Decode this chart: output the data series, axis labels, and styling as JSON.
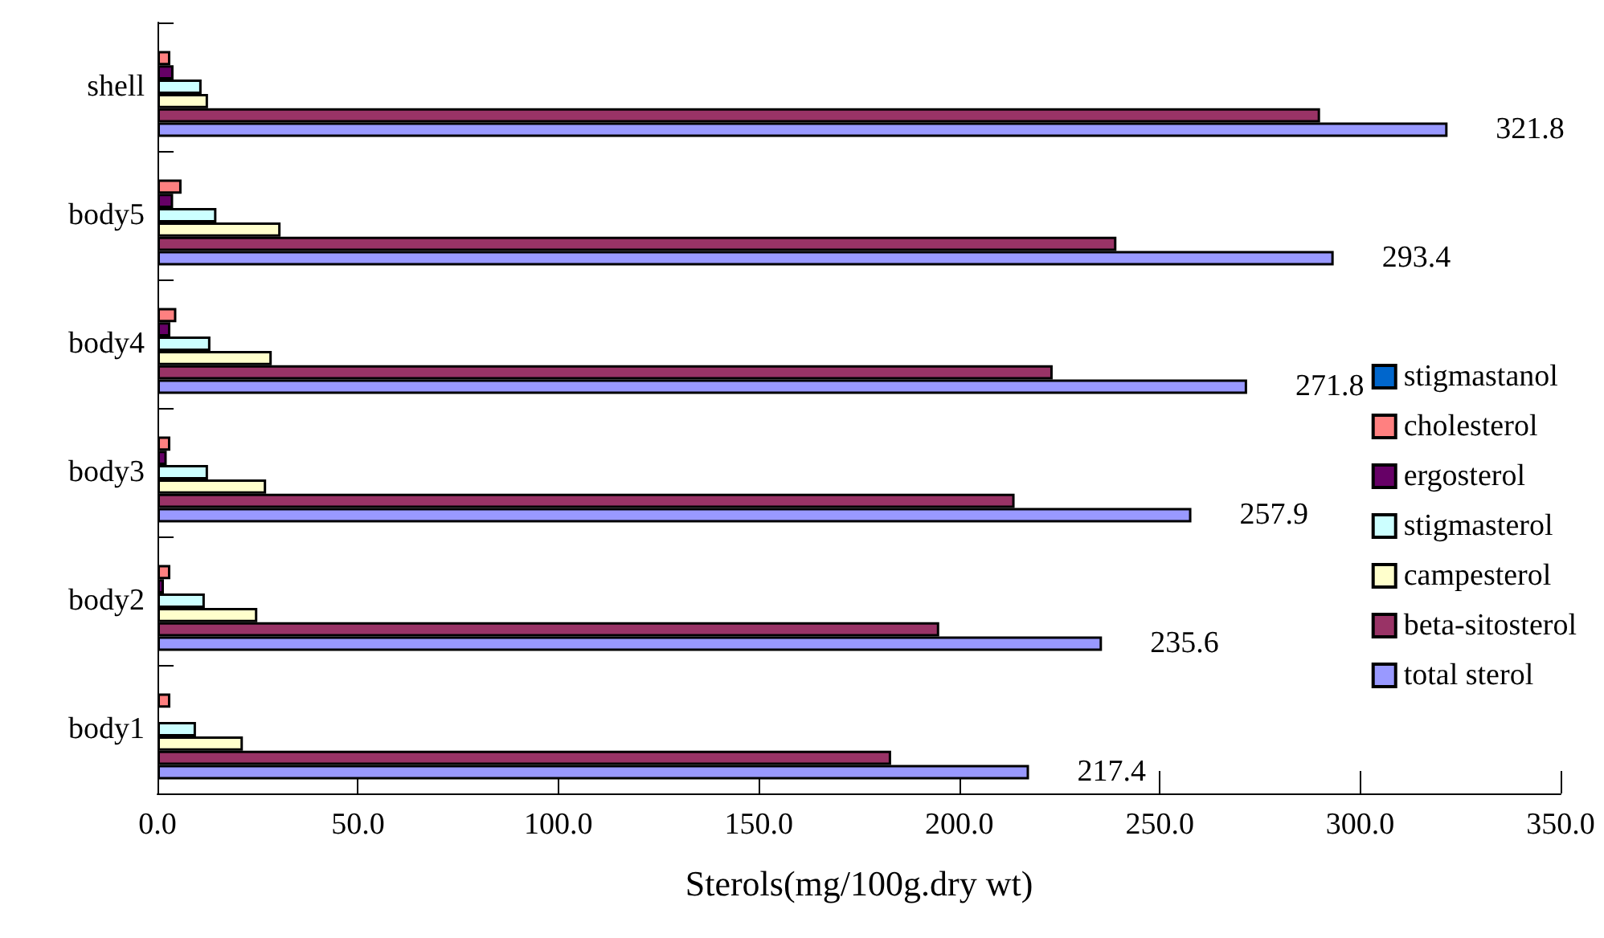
{
  "chart_data": {
    "type": "bar",
    "orientation": "horizontal",
    "xlabel": "Sterols(mg/100g.dry wt)",
    "categories": [
      "shell",
      "body5",
      "body4",
      "body3",
      "body2",
      "body1"
    ],
    "series": [
      {
        "name": "stigmastanol",
        "color": "#0066cc",
        "values": [
          0,
          0,
          0,
          0,
          0,
          0
        ]
      },
      {
        "name": "cholesterol",
        "color": "#ff8080",
        "values": [
          3.2,
          6.0,
          4.7,
          3.2,
          3.2,
          3.2
        ]
      },
      {
        "name": "ergosterol",
        "color": "#660066",
        "values": [
          4.0,
          3.9,
          3.2,
          2.3,
          1.6,
          0
        ]
      },
      {
        "name": "stigmasterol",
        "color": "#ccffff",
        "values": [
          11,
          14.7,
          13.2,
          12.6,
          11.8,
          9.6
        ]
      },
      {
        "name": "campesterol",
        "color": "#ffffcc",
        "values": [
          12.6,
          30.7,
          28.5,
          27.1,
          24.9,
          21.3
        ]
      },
      {
        "name": "beta-sitosterol",
        "color": "#993366",
        "values": [
          290,
          239.2,
          223.3,
          213.8,
          195,
          183
        ]
      },
      {
        "name": "total sterol",
        "color": "#9999ff",
        "values": [
          321.8,
          293.4,
          271.8,
          257.9,
          235.6,
          217.4
        ],
        "value_labels": [
          "321.8",
          "293.4",
          "271.8",
          "257.9",
          "235.6",
          "217.4"
        ]
      }
    ],
    "xlim": [
      0,
      350
    ],
    "xticks": [
      {
        "value": 0,
        "label": "0.0"
      },
      {
        "value": 50,
        "label": "50.0"
      },
      {
        "value": 100,
        "label": "100.0"
      },
      {
        "value": 150,
        "label": "150.0"
      },
      {
        "value": 200,
        "label": "200.0"
      },
      {
        "value": 250,
        "label": "250.0"
      },
      {
        "value": 300,
        "label": "300.0"
      },
      {
        "value": 350,
        "label": "350.0"
      }
    ],
    "grid": false,
    "legend": "right"
  }
}
